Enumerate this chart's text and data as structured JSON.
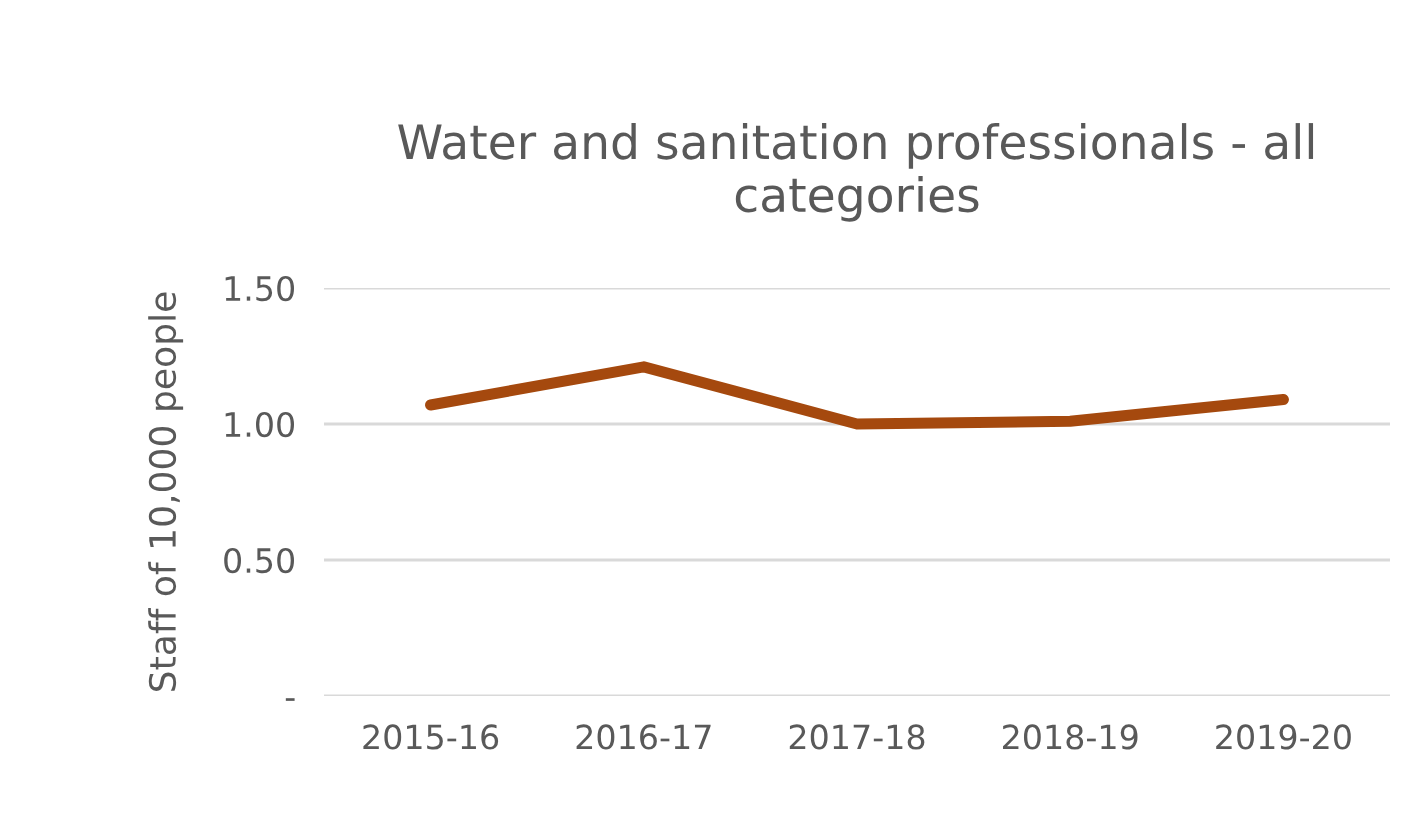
{
  "chart_data": {
    "type": "line",
    "title": "Water and sanitation professionals - all categories",
    "ylabel": "Staff of 10,000 people",
    "categories": [
      "2015-16",
      "2016-17",
      "2017-18",
      "2018-19",
      "2019-20"
    ],
    "series": [
      {
        "color": "#a5490e",
        "values": [
          1.07,
          1.21,
          1.0,
          1.01,
          1.09
        ]
      }
    ],
    "ylim": [
      0,
      1.5
    ],
    "yticks": [
      {
        "value": 0,
        "label": "-"
      },
      {
        "value": 0.5,
        "label": "0.50"
      },
      {
        "value": 1.0,
        "label": "1.00"
      },
      {
        "value": 1.5,
        "label": "1.50"
      }
    ],
    "grid": "y",
    "legend": false,
    "marker": "none",
    "line_style": "solid"
  }
}
